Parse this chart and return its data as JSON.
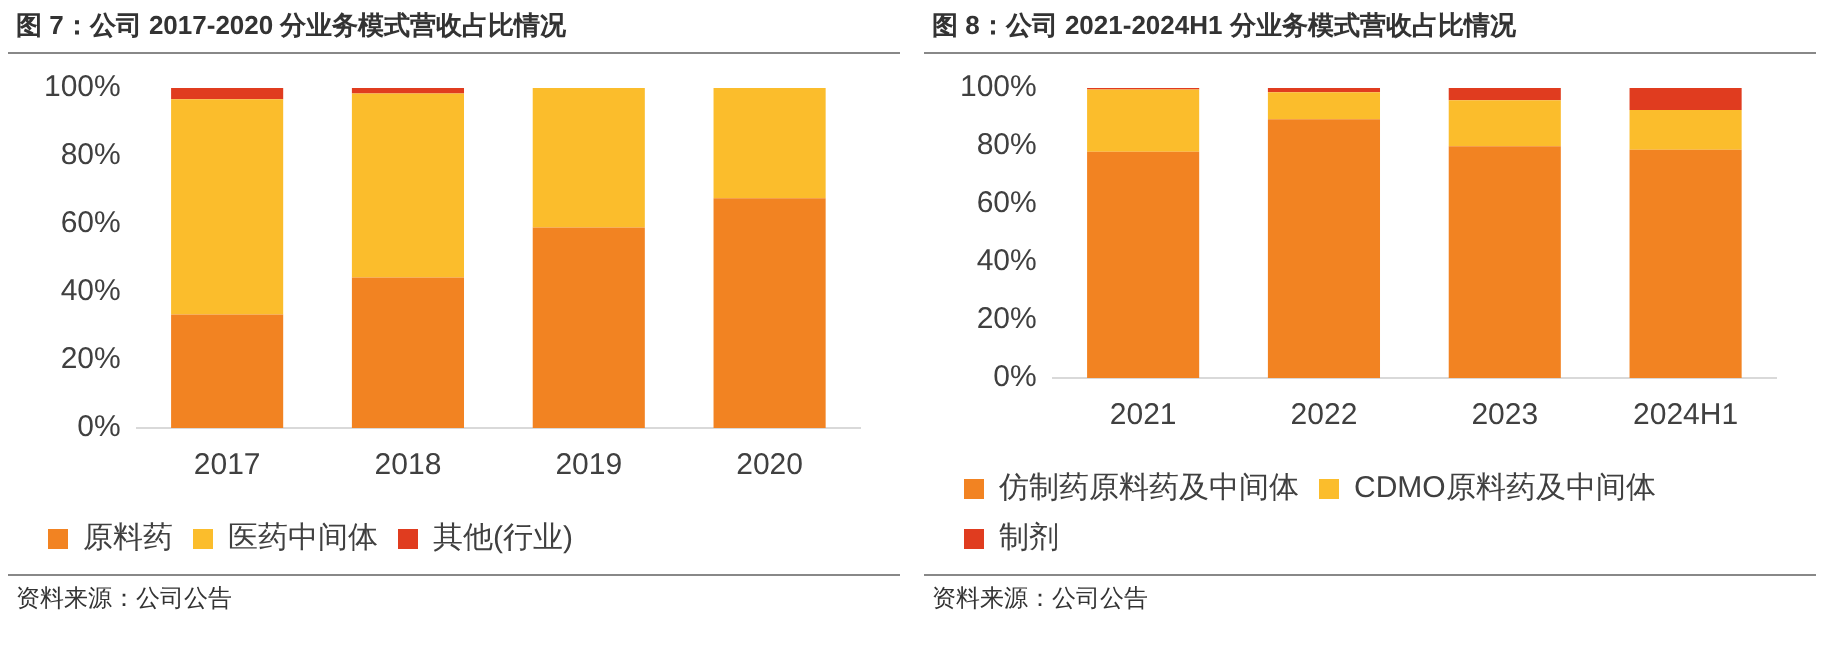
{
  "chart_data": [
    {
      "type": "bar",
      "title": "图 7：公司 2017-2020 分业务模式营收占比情况",
      "categories": [
        "2017",
        "2018",
        "2019",
        "2020"
      ],
      "stacked": true,
      "ylim": [
        0,
        100
      ],
      "yticks": [
        {
          "value": 0,
          "label": "0%"
        },
        {
          "value": 20,
          "label": "20%"
        },
        {
          "value": 40,
          "label": "40%"
        },
        {
          "value": 60,
          "label": "60%"
        },
        {
          "value": 80,
          "label": "80%"
        },
        {
          "value": 100,
          "label": "100%"
        }
      ],
      "grid": false,
      "legend": "bottom",
      "series": [
        {
          "name": "原料药",
          "color": "#f28322",
          "values": [
            33.4,
            44.3,
            59,
            67.6
          ]
        },
        {
          "name": "医药中间体",
          "color": "#fbbd2c",
          "values": [
            63.3,
            54.1,
            41,
            32.4
          ]
        },
        {
          "name": "其他(行业)",
          "color": "#e03c1f",
          "values": [
            3.3,
            1.6,
            0,
            0
          ]
        }
      ],
      "annotations": [
        "资料来源：公司公告"
      ]
    },
    {
      "type": "bar",
      "title": "图 8：公司 2021-2024H1 分业务模式营收占比情况",
      "categories": [
        "2021",
        "2022",
        "2023",
        "2024H1"
      ],
      "stacked": true,
      "ylim": [
        0,
        100
      ],
      "yticks": [
        {
          "value": 0,
          "label": "0%"
        },
        {
          "value": 20,
          "label": "20%"
        },
        {
          "value": 40,
          "label": "40%"
        },
        {
          "value": 60,
          "label": "60%"
        },
        {
          "value": 80,
          "label": "80%"
        },
        {
          "value": 100,
          "label": "100%"
        }
      ],
      "grid": false,
      "legend": "bottom",
      "series": [
        {
          "name": "仿制药原料药及中间体",
          "color": "#f28322",
          "values": [
            78,
            89.2,
            79.9,
            78.7
          ]
        },
        {
          "name": "CDMO原料药及中间体",
          "color": "#fbbd2c",
          "values": [
            21.5,
            9.3,
            15.9,
            13.7
          ]
        },
        {
          "name": "制剂",
          "color": "#e03c1f",
          "values": [
            0.5,
            1.5,
            4.2,
            7.6
          ]
        }
      ],
      "annotations": [
        "资料来源：公司公告"
      ]
    }
  ]
}
